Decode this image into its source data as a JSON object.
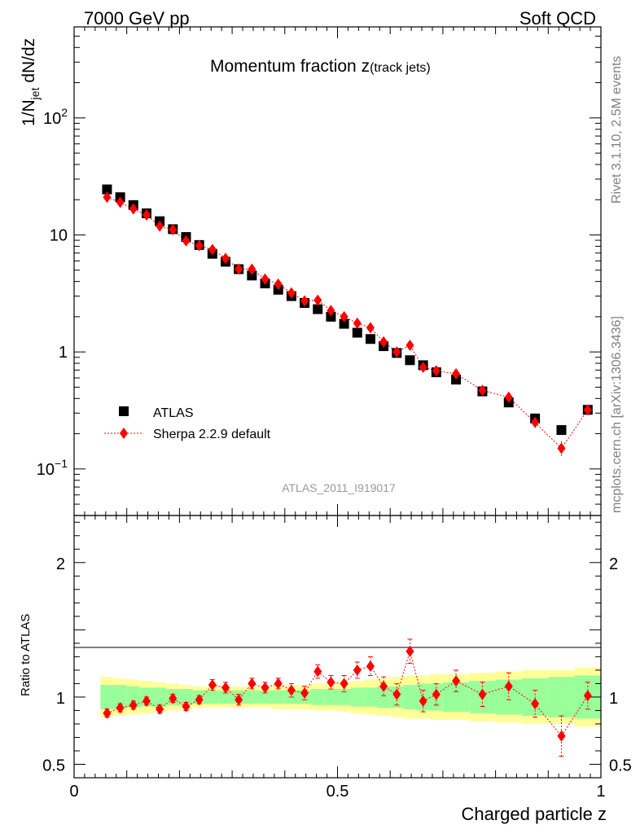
{
  "header": {
    "left": "7000 GeV pp",
    "right": "Soft QCD"
  },
  "side": {
    "rivet": "Rivet 3.1.10,  2.5M events",
    "mcplots": "mcplots.cern.ch [arXiv:1306.3436]"
  },
  "colors": {
    "data": "#000000",
    "mc": "#ff0000",
    "band_inner": "#99ff99",
    "band_outer": "#ffff99",
    "watermark": "#999999",
    "side_text": "#808080"
  },
  "chart_data": [
    {
      "type": "scatter",
      "panel": "main",
      "title": "Momentum fraction z",
      "title_sub": "(track jets)",
      "ylabel_main": "1/N",
      "ylabel_sub": "jet",
      "ylabel_rest": " dN/dz",
      "xlabel": "Charged particle z",
      "watermark": "ATLAS_2011_I919017",
      "xlim": [
        0,
        1
      ],
      "ylim": [
        0.04,
        600
      ],
      "yscale": "log",
      "yticks": [
        {
          "value": 0.1,
          "base": "10",
          "exp": "−1"
        },
        {
          "value": 1,
          "label": "1"
        },
        {
          "value": 10,
          "label": "10"
        },
        {
          "value": 100,
          "base": "10",
          "exp": "2"
        }
      ],
      "legend_position": "bottom-left",
      "series": [
        {
          "name": "ATLAS",
          "marker": "square",
          "x": [
            0.0625,
            0.0875,
            0.1125,
            0.1375,
            0.1625,
            0.1875,
            0.2125,
            0.2375,
            0.2625,
            0.2875,
            0.3125,
            0.3375,
            0.3625,
            0.3875,
            0.4125,
            0.4375,
            0.4625,
            0.4875,
            0.5125,
            0.5375,
            0.5625,
            0.5875,
            0.6125,
            0.6375,
            0.6625,
            0.6875,
            0.725,
            0.775,
            0.825,
            0.875,
            0.925,
            0.975
          ],
          "y": [
            24.5,
            21.0,
            18.0,
            15.3,
            13.1,
            11.2,
            9.6,
            8.2,
            6.9,
            5.9,
            5.1,
            4.5,
            3.85,
            3.4,
            3.0,
            2.62,
            2.32,
            2.0,
            1.74,
            1.46,
            1.29,
            1.12,
            0.98,
            0.85,
            0.77,
            0.67,
            0.58,
            0.46,
            0.37,
            0.27,
            0.215,
            0.32
          ]
        },
        {
          "name": "Sherpa 2.2.9 default",
          "marker": "diamond",
          "line": "dotted",
          "x": [
            0.0625,
            0.0875,
            0.1125,
            0.1375,
            0.1625,
            0.1875,
            0.2125,
            0.2375,
            0.2625,
            0.2875,
            0.3125,
            0.3375,
            0.3625,
            0.3875,
            0.4125,
            0.4375,
            0.4625,
            0.4875,
            0.5125,
            0.5375,
            0.5625,
            0.5875,
            0.6125,
            0.6375,
            0.6625,
            0.6875,
            0.725,
            0.775,
            0.825,
            0.875,
            0.925,
            0.975
          ],
          "y": [
            21.0,
            19.0,
            16.7,
            14.8,
            11.9,
            11.1,
            8.9,
            8.1,
            7.5,
            6.3,
            5.1,
            5.1,
            4.2,
            3.8,
            3.2,
            2.73,
            2.77,
            2.26,
            2.0,
            1.76,
            1.61,
            1.22,
            1.0,
            1.14,
            0.74,
            0.69,
            0.65,
            0.47,
            0.41,
            0.25,
            0.15,
            0.32
          ]
        }
      ]
    },
    {
      "type": "scatter",
      "panel": "ratio",
      "ylabel": "Ratio to ATLAS",
      "xlim": [
        0,
        1
      ],
      "ylim": [
        0.4,
        2.35
      ],
      "xticks": [
        {
          "value": 0,
          "label": "0"
        },
        {
          "value": 0.5,
          "label": "0.5"
        },
        {
          "value": 1,
          "label": "1"
        }
      ],
      "yticks": [
        {
          "value": 0.5,
          "label": "0.5"
        },
        {
          "value": 1,
          "label": "1"
        },
        {
          "value": 2,
          "label": "2"
        }
      ],
      "band_edges": [
        0.05,
        0.075,
        0.1,
        0.125,
        0.15,
        0.175,
        0.2,
        0.225,
        0.25,
        0.275,
        0.3,
        0.325,
        0.35,
        0.375,
        0.4,
        0.425,
        0.45,
        0.475,
        0.5,
        0.525,
        0.55,
        0.575,
        0.6,
        0.625,
        0.65,
        0.675,
        0.7,
        0.75,
        0.8,
        0.85,
        0.9,
        0.95,
        1.0
      ],
      "band_inner": [
        0.09,
        0.09,
        0.08,
        0.07,
        0.07,
        0.06,
        0.06,
        0.05,
        0.05,
        0.05,
        0.05,
        0.05,
        0.05,
        0.05,
        0.05,
        0.05,
        0.06,
        0.06,
        0.06,
        0.07,
        0.07,
        0.08,
        0.08,
        0.09,
        0.1,
        0.1,
        0.11,
        0.12,
        0.13,
        0.14,
        0.15,
        0.16
      ],
      "band_outer": [
        0.15,
        0.14,
        0.13,
        0.12,
        0.11,
        0.1,
        0.09,
        0.08,
        0.08,
        0.08,
        0.08,
        0.08,
        0.08,
        0.09,
        0.09,
        0.09,
        0.1,
        0.1,
        0.11,
        0.12,
        0.13,
        0.14,
        0.15,
        0.16,
        0.16,
        0.17,
        0.17,
        0.18,
        0.19,
        0.2,
        0.2,
        0.22
      ],
      "series": [
        {
          "name": "Sherpa 2.2.9 default",
          "x": [
            0.0625,
            0.0875,
            0.1125,
            0.1375,
            0.1625,
            0.1875,
            0.2125,
            0.2375,
            0.2625,
            0.2875,
            0.3125,
            0.3375,
            0.3625,
            0.3875,
            0.4125,
            0.4375,
            0.4625,
            0.4875,
            0.5125,
            0.5375,
            0.5625,
            0.5875,
            0.6125,
            0.6375,
            0.6625,
            0.6875,
            0.725,
            0.775,
            0.825,
            0.875,
            0.925,
            0.975
          ],
          "y": [
            0.88,
            0.92,
            0.94,
            0.97,
            0.91,
            0.99,
            0.93,
            0.98,
            1.09,
            1.07,
            0.98,
            1.1,
            1.07,
            1.1,
            1.05,
            1.03,
            1.19,
            1.11,
            1.1,
            1.2,
            1.23,
            1.08,
            1.02,
            1.34,
            0.97,
            1.02,
            1.12,
            1.02,
            1.08,
            0.95,
            0.71,
            1.01
          ],
          "yerr": [
            0.03,
            0.03,
            0.03,
            0.03,
            0.03,
            0.03,
            0.03,
            0.03,
            0.04,
            0.04,
            0.04,
            0.04,
            0.04,
            0.04,
            0.05,
            0.05,
            0.05,
            0.05,
            0.06,
            0.06,
            0.07,
            0.07,
            0.08,
            0.09,
            0.08,
            0.08,
            0.08,
            0.09,
            0.1,
            0.1,
            0.15,
            0.1
          ]
        }
      ]
    }
  ]
}
